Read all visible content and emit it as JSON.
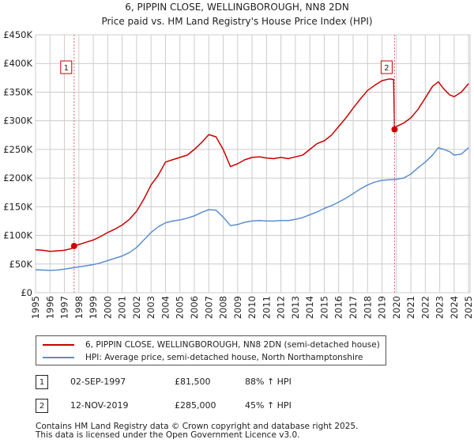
{
  "chart_data": {
    "type": "line",
    "title": "6, PIPPIN CLOSE, WELLINGBOROUGH, NN8 2DN",
    "subtitle": "Price paid vs. HM Land Registry's House Price Index (HPI)",
    "xlabel": "",
    "ylabel": "",
    "xlim": [
      1995,
      2025.1
    ],
    "ylim": [
      0,
      450000
    ],
    "y_ticks": [
      0,
      50000,
      100000,
      150000,
      200000,
      250000,
      300000,
      350000,
      400000,
      450000
    ],
    "y_tick_labels": [
      "£0",
      "£50K",
      "£100K",
      "£150K",
      "£200K",
      "£250K",
      "£300K",
      "£350K",
      "£400K",
      "£450K"
    ],
    "x_ticks": [
      1995,
      1996,
      1997,
      1998,
      1999,
      2000,
      2001,
      2002,
      2003,
      2004,
      2005,
      2006,
      2007,
      2008,
      2009,
      2010,
      2011,
      2012,
      2013,
      2014,
      2015,
      2016,
      2017,
      2018,
      2019,
      2020,
      2021,
      2022,
      2023,
      2024,
      2025
    ],
    "x_tick_labels": [
      "1995",
      "1996",
      "1997",
      "1998",
      "1999",
      "2000",
      "2001",
      "2002",
      "2003",
      "2004",
      "2005",
      "2006",
      "2007",
      "2008",
      "2009",
      "2010",
      "2011",
      "2012",
      "2013",
      "2014",
      "2015",
      "2016",
      "2017",
      "2018",
      "2019",
      "2020",
      "2021",
      "2022",
      "2023",
      "2024",
      "2025"
    ],
    "grid": true,
    "series": [
      {
        "name": "6, PIPPIN CLOSE, WELLINGBOROUGH, NN8 2DN (semi-detached house)",
        "color": "#cc0000",
        "x": [
          1995.0,
          1995.5,
          1996.0,
          1996.5,
          1997.0,
          1997.5,
          1997.67,
          1998.0,
          1998.5,
          1999.0,
          1999.5,
          2000.0,
          2000.5,
          2001.0,
          2001.5,
          2002.0,
          2002.5,
          2003.0,
          2003.5,
          2004.0,
          2004.5,
          2005.0,
          2005.5,
          2006.0,
          2006.5,
          2007.0,
          2007.5,
          2008.0,
          2008.5,
          2009.0,
          2009.5,
          2010.0,
          2010.5,
          2011.0,
          2011.5,
          2012.0,
          2012.5,
          2013.0,
          2013.5,
          2014.0,
          2014.5,
          2015.0,
          2015.5,
          2016.0,
          2016.5,
          2017.0,
          2017.5,
          2018.0,
          2018.5,
          2019.0,
          2019.5,
          2019.8,
          2019.87,
          2020.0,
          2020.5,
          2021.0,
          2021.5,
          2022.0,
          2022.5,
          2022.9,
          2023.3,
          2023.7,
          2024.0,
          2024.5,
          2025.0
        ],
        "values": [
          75000,
          74000,
          72000,
          73000,
          74000,
          77000,
          81500,
          84000,
          88000,
          92000,
          98000,
          105000,
          111000,
          118000,
          128000,
          142000,
          163000,
          188000,
          205000,
          228000,
          232000,
          236000,
          240000,
          250000,
          262000,
          276000,
          272000,
          250000,
          220000,
          225000,
          232000,
          236000,
          237000,
          235000,
          234000,
          236000,
          234000,
          237000,
          240000,
          250000,
          260000,
          265000,
          275000,
          290000,
          305000,
          322000,
          338000,
          353000,
          362000,
          370000,
          373000,
          372000,
          285000,
          290000,
          296000,
          305000,
          320000,
          340000,
          360000,
          368000,
          355000,
          345000,
          342000,
          350000,
          365000
        ]
      },
      {
        "name": "HPI: Average price, semi-detached house, North Northamptonshire",
        "color": "#5b8fcf",
        "x": [
          1995.0,
          1995.5,
          1996.0,
          1996.5,
          1997.0,
          1997.5,
          1998.0,
          1998.5,
          1999.0,
          1999.5,
          2000.0,
          2000.5,
          2001.0,
          2001.5,
          2002.0,
          2002.5,
          2003.0,
          2003.5,
          2004.0,
          2004.5,
          2005.0,
          2005.5,
          2006.0,
          2006.5,
          2007.0,
          2007.5,
          2008.0,
          2008.5,
          2009.0,
          2009.5,
          2010.0,
          2010.5,
          2011.0,
          2011.5,
          2012.0,
          2012.5,
          2013.0,
          2013.5,
          2014.0,
          2014.5,
          2015.0,
          2015.5,
          2016.0,
          2016.5,
          2017.0,
          2017.5,
          2018.0,
          2018.5,
          2019.0,
          2019.5,
          2020.0,
          2020.5,
          2021.0,
          2021.5,
          2022.0,
          2022.5,
          2022.9,
          2023.3,
          2023.7,
          2024.0,
          2024.5,
          2025.0
        ],
        "values": [
          40000,
          39500,
          39000,
          39500,
          41000,
          43000,
          45000,
          47000,
          49000,
          52000,
          56000,
          60000,
          64000,
          70000,
          79000,
          92000,
          105000,
          115000,
          122000,
          125000,
          127000,
          130000,
          134000,
          140000,
          145000,
          144000,
          132000,
          117000,
          119000,
          123000,
          125000,
          126000,
          125000,
          125000,
          126000,
          126000,
          128000,
          131000,
          136000,
          141000,
          147000,
          152000,
          158000,
          165000,
          173000,
          181000,
          188000,
          193000,
          196000,
          197000,
          198000,
          200000,
          207000,
          218000,
          228000,
          240000,
          253000,
          250000,
          246000,
          240000,
          242000,
          253000
        ]
      }
    ],
    "annotations": [
      {
        "label": "1",
        "x": 1997.67,
        "value": 81500
      },
      {
        "label": "2",
        "x": 2019.87,
        "value": 285000
      }
    ]
  },
  "legend": {
    "items": [
      {
        "label": "6, PIPPIN CLOSE, WELLINGBOROUGH, NN8 2DN (semi-detached house)",
        "color": "#cc0000"
      },
      {
        "label": "HPI: Average price, semi-detached house, North Northamptonshire",
        "color": "#5b8fcf"
      }
    ]
  },
  "sales": [
    {
      "num": "1",
      "date": "02-SEP-1997",
      "price": "£81,500",
      "hpi": "88% ↑ HPI"
    },
    {
      "num": "2",
      "date": "12-NOV-2019",
      "price": "£285,000",
      "hpi": "45% ↑ HPI"
    }
  ],
  "footer": {
    "line1": "Contains HM Land Registry data © Crown copyright and database right 2025.",
    "line2": "This data is licensed under the Open Government Licence v3.0."
  }
}
